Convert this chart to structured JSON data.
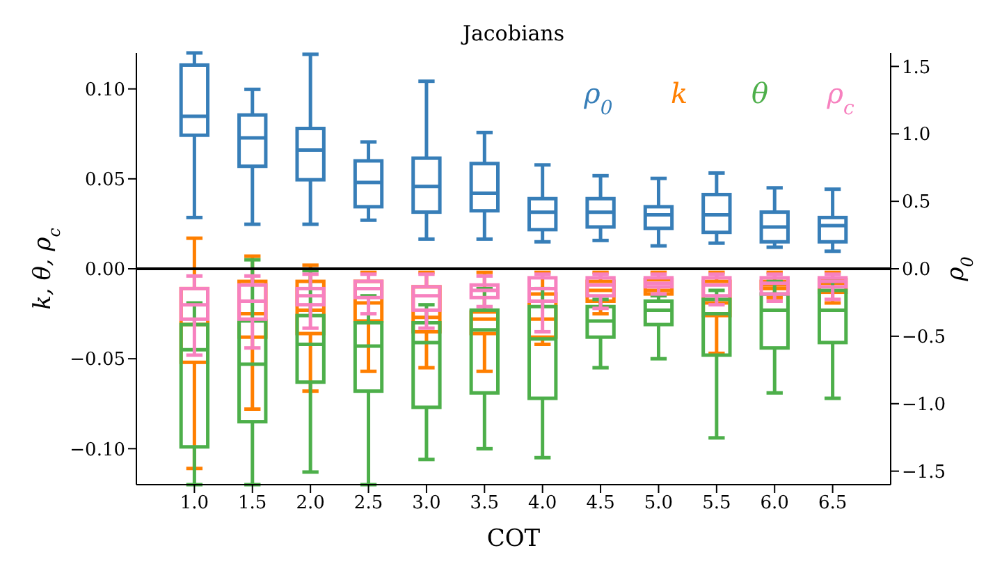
{
  "chart_data": {
    "type": "box",
    "title": "Jacobians",
    "xlabel": "COT",
    "ylabel": "k, θ, ρ$_{c}$",
    "y2label": "ρ$_{0}$",
    "legend": "top right",
    "categories": [
      "1.0",
      "1.5",
      "2.0",
      "2.5",
      "3.0",
      "3.5",
      "4.0",
      "4.5",
      "5.0",
      "5.5",
      "6.0",
      "6.5"
    ],
    "ylim": [
      -0.12,
      0.12
    ],
    "yticks": [
      {
        "value": -0.1,
        "label": "−0.10"
      },
      {
        "value": -0.05,
        "label": "−0.05"
      },
      {
        "value": 0,
        "label": "0.00"
      },
      {
        "value": 0.05,
        "label": "0.05"
      },
      {
        "value": 0.1,
        "label": "0.10"
      }
    ],
    "y2lim": [
      -1.6,
      1.6
    ],
    "y2ticks": [
      {
        "value": -1.5,
        "label": "−1.5"
      },
      {
        "value": -1,
        "label": "−1.0"
      },
      {
        "value": -0.5,
        "label": "−0.5"
      },
      {
        "value": 0,
        "label": "0.0"
      },
      {
        "value": 0.5,
        "label": "0.5"
      },
      {
        "value": 1,
        "label": "1.0"
      },
      {
        "value": 1.5,
        "label": "1.5"
      }
    ],
    "ref_lines": [
      {
        "axis": "y",
        "value": 0,
        "color": "#000000"
      }
    ],
    "series": [
      {
        "name": "ρ$_{0}$",
        "color": "#377eb8",
        "axis": "y2",
        "boxes": [
          {
            "low": 0.38,
            "q1": 0.99,
            "median": 1.13,
            "q3": 1.51,
            "high": 1.6
          },
          {
            "low": 0.33,
            "q1": 0.76,
            "median": 0.97,
            "q3": 1.14,
            "high": 1.33
          },
          {
            "low": 0.33,
            "q1": 0.66,
            "median": 0.88,
            "q3": 1.04,
            "high": 1.59
          },
          {
            "low": 0.36,
            "q1": 0.46,
            "median": 0.64,
            "q3": 0.8,
            "high": 0.94
          },
          {
            "low": 0.22,
            "q1": 0.42,
            "median": 0.61,
            "q3": 0.82,
            "high": 1.39
          },
          {
            "low": 0.22,
            "q1": 0.43,
            "median": 0.56,
            "q3": 0.78,
            "high": 1.01
          },
          {
            "low": 0.2,
            "q1": 0.29,
            "median": 0.42,
            "q3": 0.52,
            "high": 0.77
          },
          {
            "low": 0.21,
            "q1": 0.31,
            "median": 0.42,
            "q3": 0.52,
            "high": 0.69
          },
          {
            "low": 0.17,
            "q1": 0.3,
            "median": 0.4,
            "q3": 0.46,
            "high": 0.67
          },
          {
            "low": 0.19,
            "q1": 0.27,
            "median": 0.4,
            "q3": 0.55,
            "high": 0.71
          },
          {
            "low": 0.16,
            "q1": 0.2,
            "median": 0.31,
            "q3": 0.42,
            "high": 0.6
          },
          {
            "low": 0.13,
            "q1": 0.2,
            "median": 0.32,
            "q3": 0.38,
            "high": 0.59
          }
        ]
      },
      {
        "name": "k",
        "color": "#ff7f00",
        "boxes": [
          {
            "low": -0.111,
            "q1": -0.052,
            "median": -0.031,
            "q3": -0.011,
            "high": 0.017
          },
          {
            "low": -0.078,
            "q1": -0.038,
            "median": -0.025,
            "q3": -0.007,
            "high": 0.007
          },
          {
            "low": -0.068,
            "q1": -0.036,
            "median": -0.023,
            "q3": -0.007,
            "high": 0.002
          },
          {
            "low": -0.057,
            "q1": -0.029,
            "median": -0.019,
            "q3": -0.007,
            "high": -0.002
          },
          {
            "low": -0.055,
            "q1": -0.035,
            "median": -0.027,
            "q3": -0.01,
            "high": -0.002
          },
          {
            "low": -0.057,
            "q1": -0.036,
            "median": -0.028,
            "q3": -0.024,
            "high": -0.002
          },
          {
            "low": -0.042,
            "q1": -0.038,
            "median": -0.028,
            "q3": -0.014,
            "high": -0.002
          },
          {
            "low": -0.025,
            "q1": -0.018,
            "median": -0.012,
            "q3": -0.007,
            "high": -0.002
          },
          {
            "low": -0.018,
            "q1": -0.014,
            "median": -0.012,
            "q3": -0.006,
            "high": -0.002
          },
          {
            "low": -0.047,
            "q1": -0.026,
            "median": -0.019,
            "q3": -0.007,
            "high": -0.002
          },
          {
            "low": -0.016,
            "q1": -0.011,
            "median": -0.009,
            "q3": -0.007,
            "high": -0.002
          },
          {
            "low": -0.019,
            "q1": -0.013,
            "median": -0.008,
            "q3": -0.006,
            "high": -0.002
          }
        ]
      },
      {
        "name": "θ",
        "color": "#4daf4a",
        "boxes": [
          {
            "low": -0.12,
            "q1": -0.099,
            "median": -0.045,
            "q3": -0.031,
            "high": -0.019
          },
          {
            "low": -0.12,
            "q1": -0.085,
            "median": -0.053,
            "q3": -0.029,
            "high": 0.005
          },
          {
            "low": -0.113,
            "q1": -0.063,
            "median": -0.042,
            "q3": -0.026,
            "high": -0.001
          },
          {
            "low": -0.12,
            "q1": -0.068,
            "median": -0.043,
            "q3": -0.03,
            "high": -0.015
          },
          {
            "low": -0.106,
            "q1": -0.077,
            "median": -0.041,
            "q3": -0.03,
            "high": -0.02
          },
          {
            "low": -0.1,
            "q1": -0.069,
            "median": -0.034,
            "q3": -0.023,
            "high": -0.011
          },
          {
            "low": -0.105,
            "q1": -0.072,
            "median": -0.039,
            "q3": -0.021,
            "high": -0.011
          },
          {
            "low": -0.055,
            "q1": -0.038,
            "median": -0.029,
            "q3": -0.021,
            "high": -0.017
          },
          {
            "low": -0.05,
            "q1": -0.031,
            "median": -0.023,
            "q3": -0.018,
            "high": -0.015
          },
          {
            "low": -0.094,
            "q1": -0.048,
            "median": -0.025,
            "q3": -0.017,
            "high": -0.012
          },
          {
            "low": -0.069,
            "q1": -0.044,
            "median": -0.023,
            "q3": -0.014,
            "high": -0.007
          },
          {
            "low": -0.072,
            "q1": -0.041,
            "median": -0.023,
            "q3": -0.012,
            "high": -0.007
          }
        ]
      },
      {
        "name": "ρ$_{c}$",
        "color": "#f781bf",
        "boxes": [
          {
            "low": -0.048,
            "q1": -0.028,
            "median": -0.02,
            "q3": -0.011,
            "high": -0.004
          },
          {
            "low": -0.044,
            "q1": -0.028,
            "median": -0.018,
            "q3": -0.009,
            "high": -0.004
          },
          {
            "low": -0.033,
            "q1": -0.02,
            "median": -0.015,
            "q3": -0.011,
            "high": -0.003
          },
          {
            "low": -0.025,
            "q1": -0.016,
            "median": -0.011,
            "q3": -0.007,
            "high": -0.003
          },
          {
            "low": -0.033,
            "q1": -0.023,
            "median": -0.015,
            "q3": -0.01,
            "high": -0.003
          },
          {
            "low": -0.021,
            "q1": -0.016,
            "median": -0.012,
            "q3": -0.009,
            "high": -0.004
          },
          {
            "low": -0.035,
            "q1": -0.018,
            "median": -0.011,
            "q3": -0.005,
            "high": -0.003
          },
          {
            "low": -0.022,
            "q1": -0.015,
            "median": -0.009,
            "q3": -0.005,
            "high": -0.003
          },
          {
            "low": -0.014,
            "q1": -0.01,
            "median": -0.008,
            "q3": -0.005,
            "high": -0.003
          },
          {
            "low": -0.02,
            "q1": -0.015,
            "median": -0.009,
            "q3": -0.005,
            "high": -0.003
          },
          {
            "low": -0.018,
            "q1": -0.014,
            "median": -0.008,
            "q3": -0.005,
            "high": -0.003
          },
          {
            "low": -0.017,
            "q1": -0.01,
            "median": -0.007,
            "q3": -0.005,
            "high": -0.003
          }
        ]
      }
    ]
  }
}
